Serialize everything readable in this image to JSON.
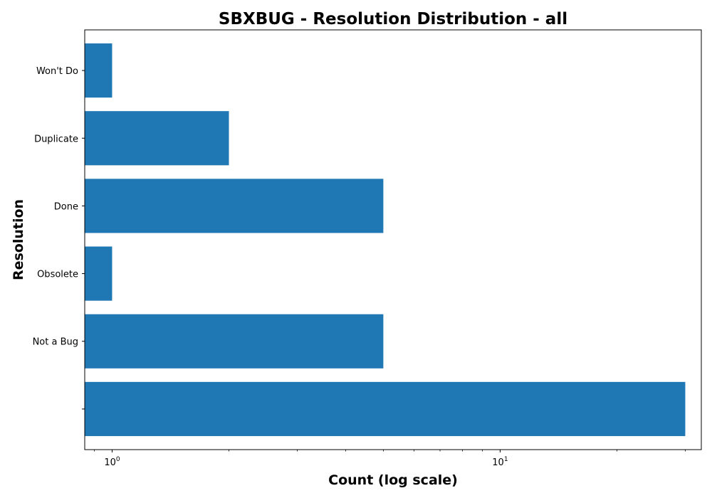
{
  "chart_data": {
    "type": "bar",
    "orientation": "horizontal",
    "title": "SBXBUG - Resolution Distribution - all",
    "xlabel": "Count (log scale)",
    "ylabel": "Resolution",
    "x_scale": "log",
    "xlim": [
      0.85,
      33
    ],
    "grid": false,
    "legend": "none",
    "bar_color": "#1f77b4",
    "categories": [
      "",
      "Not a Bug",
      "Obsolete",
      "Done",
      "Duplicate",
      "Won't Do"
    ],
    "values": [
      30,
      5,
      1,
      5,
      2,
      1
    ],
    "x_ticks": [
      {
        "value": 1,
        "base": "10",
        "exponent": "0"
      },
      {
        "value": 10,
        "base": "10",
        "exponent": "1"
      }
    ]
  }
}
